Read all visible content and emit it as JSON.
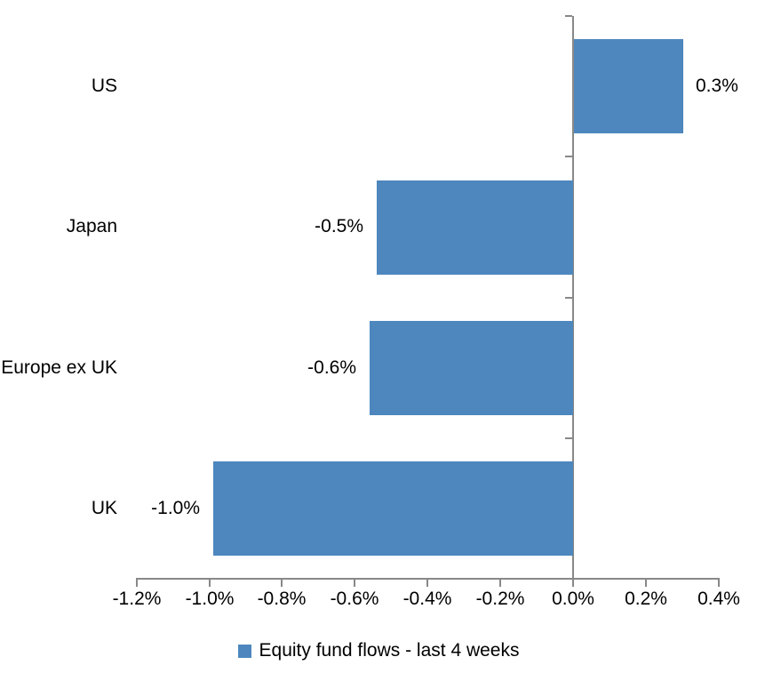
{
  "chart_data": {
    "type": "bar",
    "orientation": "horizontal",
    "title": "",
    "xlabel": "",
    "ylabel": "",
    "grid": false,
    "categories": [
      "US",
      "Japan",
      "Europe ex UK",
      "UK"
    ],
    "values": [
      0.3,
      -0.5,
      -0.6,
      -1.0
    ],
    "data_labels": [
      "0.3%",
      "-0.5%",
      "-0.6%",
      "-1.0%"
    ],
    "bar_lengths_pct": [
      0.3,
      -0.54,
      -0.56,
      -0.99
    ],
    "xlim": [
      -1.2,
      0.4
    ],
    "x_ticks": [
      -1.2,
      -1.0,
      -0.8,
      -0.6,
      -0.4,
      -0.2,
      0.0,
      0.2,
      0.4
    ],
    "x_tick_labels": [
      "-1.2%",
      "-1.0%",
      "-0.8%",
      "-0.6%",
      "-0.4%",
      "-0.2%",
      "0.0%",
      "0.2%",
      "0.4%"
    ],
    "legend": {
      "position": "bottom",
      "entries": [
        "Equity fund flows - last 4 weeks"
      ]
    },
    "colors": {
      "bar": "#4D87BE",
      "axis": "#888888",
      "text": "#000000",
      "background": "#FFFFFF"
    }
  }
}
